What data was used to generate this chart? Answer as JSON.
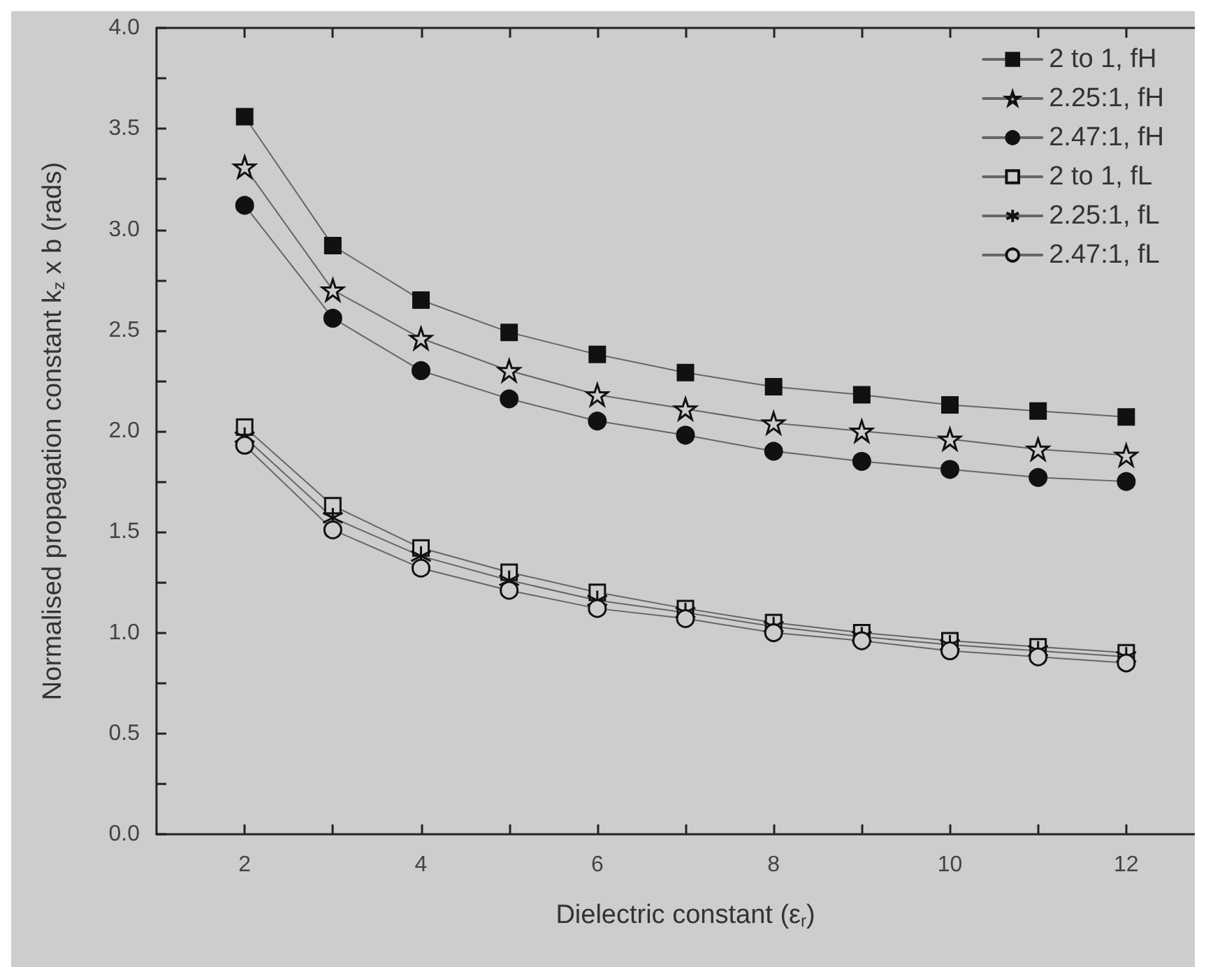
{
  "chart_data": {
    "type": "line",
    "xlabel": "Dielectric constant (ε$_{r}$)",
    "ylabel": "Normalised propagation constant k$_{z}$ x b (rads)",
    "x": [
      2,
      3,
      4,
      5,
      6,
      7,
      8,
      9,
      10,
      11,
      12
    ],
    "series": [
      {
        "name": "2 to 1, fH",
        "color": "#111111",
        "marker": "square",
        "values": [
          3.56,
          2.92,
          2.65,
          2.49,
          2.38,
          2.29,
          2.22,
          2.18,
          2.13,
          2.1,
          2.07
        ]
      },
      {
        "name": "2.25:1, fH",
        "color": "#111111",
        "marker": "star",
        "values": [
          3.31,
          2.7,
          2.46,
          2.3,
          2.18,
          2.11,
          2.04,
          2.0,
          1.96,
          1.91,
          1.88
        ]
      },
      {
        "name": "2.47:1, fH",
        "color": "#111111",
        "marker": "circle",
        "values": [
          3.12,
          2.56,
          2.3,
          2.16,
          2.05,
          1.98,
          1.9,
          1.85,
          1.81,
          1.77,
          1.75
        ]
      },
      {
        "name": "2 to 1, fL",
        "color": "#111111",
        "marker": "square",
        "values": [
          2.02,
          1.63,
          1.42,
          1.3,
          1.2,
          1.12,
          1.05,
          1.0,
          0.96,
          0.93,
          0.9
        ]
      },
      {
        "name": "2.25:1, fL",
        "color": "#111111",
        "marker": "cross",
        "values": [
          1.97,
          1.57,
          1.38,
          1.26,
          1.16,
          1.1,
          1.03,
          0.98,
          0.94,
          0.91,
          0.88
        ]
      },
      {
        "name": "2.47:1, fL",
        "color": "#111111",
        "marker": "circle",
        "values": [
          1.93,
          1.51,
          1.32,
          1.21,
          1.12,
          1.07,
          1.0,
          0.96,
          0.91,
          0.88,
          0.85
        ]
      }
    ],
    "xlim": [
      1,
      13
    ],
    "xticks": [
      2,
      {
        "value": 3,
        "label": null
      },
      4,
      {
        "value": 5,
        "label": null
      },
      6,
      {
        "value": 7,
        "label": null
      },
      8,
      {
        "value": 9,
        "label": null
      },
      10,
      {
        "value": 11,
        "label": null
      },
      12
    ],
    "ylim": [
      0,
      4
    ],
    "yticks": [
      {
        "value": 0,
        "label": "0.0"
      },
      {
        "value": 0.25,
        "label": null
      },
      {
        "value": 0.5,
        "label": "0.5"
      },
      {
        "value": 0.75,
        "label": null
      },
      {
        "value": 1,
        "label": "1.0"
      },
      {
        "value": 1.25,
        "label": null
      },
      {
        "value": 1.5,
        "label": "1.5"
      },
      {
        "value": 1.75,
        "label": null
      },
      {
        "value": 2,
        "label": "2.0"
      },
      {
        "value": 2.25,
        "label": null
      },
      {
        "value": 2.5,
        "label": "2.5"
      },
      {
        "value": 2.75,
        "label": null
      },
      {
        "value": 3,
        "label": "3.0"
      },
      {
        "value": 3.25,
        "label": null
      },
      {
        "value": 3.5,
        "label": "3.5"
      },
      {
        "value": 3.75,
        "label": null
      },
      {
        "value": 4,
        "label": "4.0"
      }
    ],
    "grid": false,
    "legend": "top right",
    "line_style": "solid"
  }
}
